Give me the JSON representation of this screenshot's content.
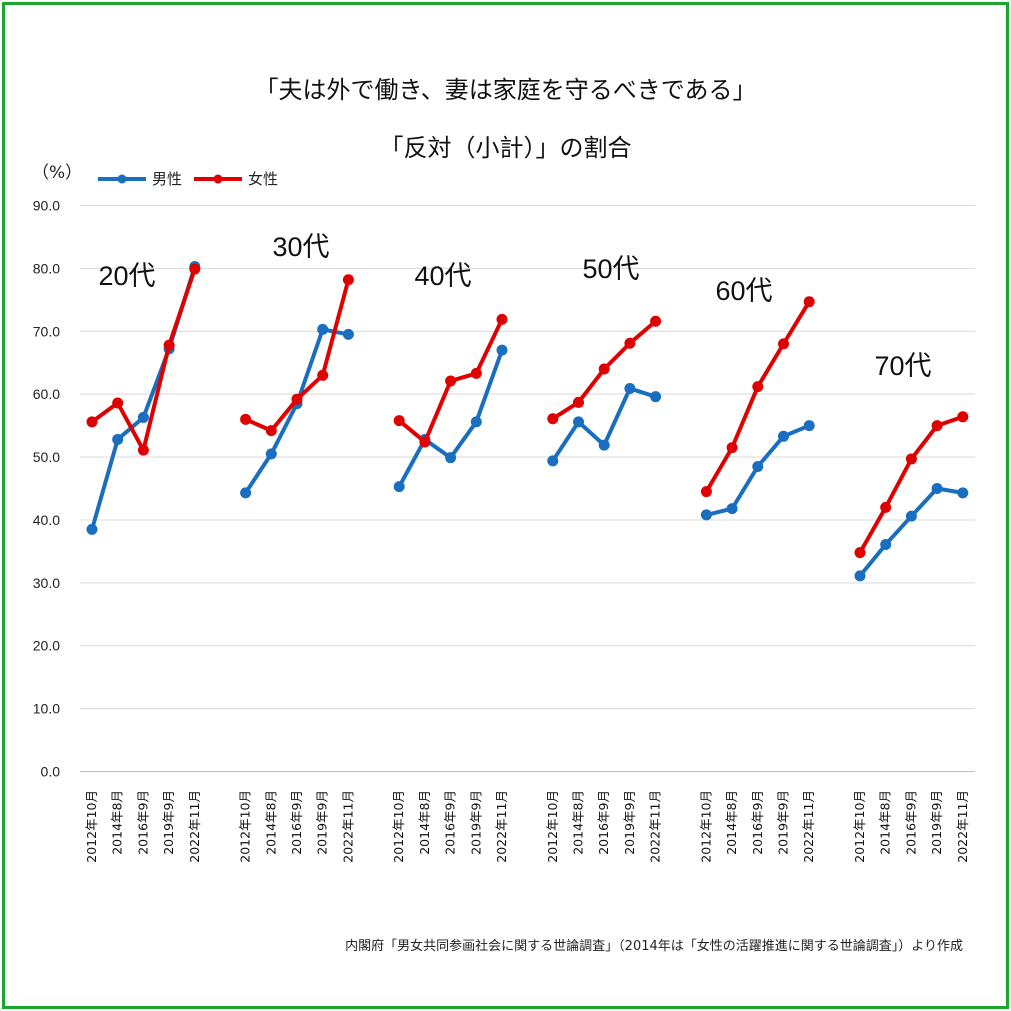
{
  "title_line1": "「夫は外で働き、妻は家庭を守るべきである」",
  "title_line2": "「反対（小計）」の割合",
  "unit": "（%）",
  "source": "内閣府「男女共同参画社会に関する世論調査」（2014年は「女性の活躍推進に関する世論調査」）より作成",
  "colors": {
    "male": "#1a6ec0",
    "female": "#e00000",
    "frame": "#1aa62e",
    "grid": "#d9d9d9"
  },
  "chart_data": {
    "type": "line",
    "ylim": [
      0,
      90
    ],
    "yticks": [
      "0.0",
      "10.0",
      "20.0",
      "30.0",
      "40.0",
      "50.0",
      "60.0",
      "70.0",
      "80.0",
      "90.0"
    ],
    "grid": true,
    "legend_position": "top-left",
    "x_labels": [
      "2012年10月",
      "2014年8月",
      "2016年9月",
      "2019年9月",
      "2022年11月"
    ],
    "series_names": [
      "男性",
      "女性"
    ],
    "groups": [
      {
        "label": "20代",
        "male": [
          38.5,
          52.8,
          56.3,
          67.2,
          80.3
        ],
        "female": [
          55.6,
          58.6,
          51.1,
          67.8,
          79.9
        ]
      },
      {
        "label": "30代",
        "male": [
          44.3,
          50.5,
          58.5,
          70.3,
          69.5
        ],
        "female": [
          56.0,
          54.2,
          59.2,
          63.0,
          78.2
        ]
      },
      {
        "label": "40代",
        "male": [
          45.3,
          52.8,
          49.9,
          55.6,
          67.0
        ],
        "female": [
          55.8,
          52.4,
          62.1,
          63.3,
          71.9
        ]
      },
      {
        "label": "50代",
        "male": [
          49.4,
          55.6,
          51.9,
          60.9,
          59.6
        ],
        "female": [
          56.1,
          58.7,
          64.0,
          68.1,
          71.6
        ]
      },
      {
        "label": "60代",
        "male": [
          40.8,
          41.8,
          48.5,
          53.3,
          55.0
        ],
        "female": [
          44.5,
          51.5,
          61.2,
          68.0,
          74.7
        ]
      },
      {
        "label": "70代",
        "male": [
          31.1,
          36.1,
          40.6,
          45.0,
          44.3
        ],
        "female": [
          34.8,
          42.0,
          49.7,
          55.0,
          56.4
        ]
      }
    ]
  }
}
